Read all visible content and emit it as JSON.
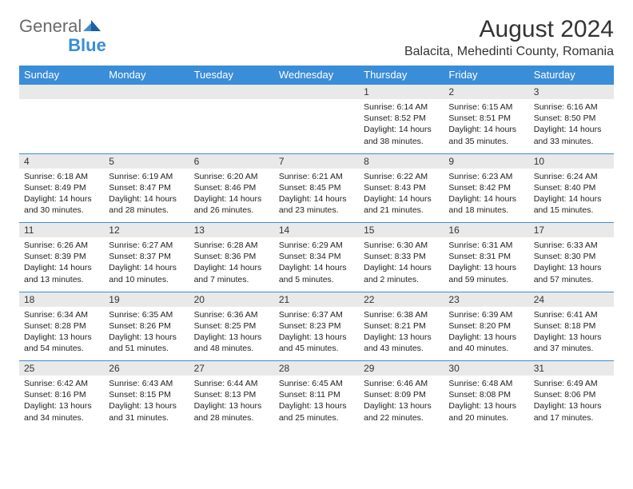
{
  "logo": {
    "general": "General",
    "blue": "Blue"
  },
  "title": "August 2024",
  "location": "Balacita, Mehedinti County, Romania",
  "colors": {
    "header_bg": "#3a8dd8",
    "header_text": "#ffffff",
    "daynum_bg": "#e9e9e9",
    "row_border": "#3a8dd8",
    "body_text": "#222222",
    "page_bg": "#ffffff"
  },
  "dayHeaders": [
    "Sunday",
    "Monday",
    "Tuesday",
    "Wednesday",
    "Thursday",
    "Friday",
    "Saturday"
  ],
  "weeks": [
    {
      "nums": [
        "",
        "",
        "",
        "",
        "1",
        "2",
        "3"
      ],
      "cells": [
        null,
        null,
        null,
        null,
        {
          "sunrise": "Sunrise: 6:14 AM",
          "sunset": "Sunset: 8:52 PM",
          "day1": "Daylight: 14 hours",
          "day2": "and 38 minutes."
        },
        {
          "sunrise": "Sunrise: 6:15 AM",
          "sunset": "Sunset: 8:51 PM",
          "day1": "Daylight: 14 hours",
          "day2": "and 35 minutes."
        },
        {
          "sunrise": "Sunrise: 6:16 AM",
          "sunset": "Sunset: 8:50 PM",
          "day1": "Daylight: 14 hours",
          "day2": "and 33 minutes."
        }
      ]
    },
    {
      "nums": [
        "4",
        "5",
        "6",
        "7",
        "8",
        "9",
        "10"
      ],
      "cells": [
        {
          "sunrise": "Sunrise: 6:18 AM",
          "sunset": "Sunset: 8:49 PM",
          "day1": "Daylight: 14 hours",
          "day2": "and 30 minutes."
        },
        {
          "sunrise": "Sunrise: 6:19 AM",
          "sunset": "Sunset: 8:47 PM",
          "day1": "Daylight: 14 hours",
          "day2": "and 28 minutes."
        },
        {
          "sunrise": "Sunrise: 6:20 AM",
          "sunset": "Sunset: 8:46 PM",
          "day1": "Daylight: 14 hours",
          "day2": "and 26 minutes."
        },
        {
          "sunrise": "Sunrise: 6:21 AM",
          "sunset": "Sunset: 8:45 PM",
          "day1": "Daylight: 14 hours",
          "day2": "and 23 minutes."
        },
        {
          "sunrise": "Sunrise: 6:22 AM",
          "sunset": "Sunset: 8:43 PM",
          "day1": "Daylight: 14 hours",
          "day2": "and 21 minutes."
        },
        {
          "sunrise": "Sunrise: 6:23 AM",
          "sunset": "Sunset: 8:42 PM",
          "day1": "Daylight: 14 hours",
          "day2": "and 18 minutes."
        },
        {
          "sunrise": "Sunrise: 6:24 AM",
          "sunset": "Sunset: 8:40 PM",
          "day1": "Daylight: 14 hours",
          "day2": "and 15 minutes."
        }
      ]
    },
    {
      "nums": [
        "11",
        "12",
        "13",
        "14",
        "15",
        "16",
        "17"
      ],
      "cells": [
        {
          "sunrise": "Sunrise: 6:26 AM",
          "sunset": "Sunset: 8:39 PM",
          "day1": "Daylight: 14 hours",
          "day2": "and 13 minutes."
        },
        {
          "sunrise": "Sunrise: 6:27 AM",
          "sunset": "Sunset: 8:37 PM",
          "day1": "Daylight: 14 hours",
          "day2": "and 10 minutes."
        },
        {
          "sunrise": "Sunrise: 6:28 AM",
          "sunset": "Sunset: 8:36 PM",
          "day1": "Daylight: 14 hours",
          "day2": "and 7 minutes."
        },
        {
          "sunrise": "Sunrise: 6:29 AM",
          "sunset": "Sunset: 8:34 PM",
          "day1": "Daylight: 14 hours",
          "day2": "and 5 minutes."
        },
        {
          "sunrise": "Sunrise: 6:30 AM",
          "sunset": "Sunset: 8:33 PM",
          "day1": "Daylight: 14 hours",
          "day2": "and 2 minutes."
        },
        {
          "sunrise": "Sunrise: 6:31 AM",
          "sunset": "Sunset: 8:31 PM",
          "day1": "Daylight: 13 hours",
          "day2": "and 59 minutes."
        },
        {
          "sunrise": "Sunrise: 6:33 AM",
          "sunset": "Sunset: 8:30 PM",
          "day1": "Daylight: 13 hours",
          "day2": "and 57 minutes."
        }
      ]
    },
    {
      "nums": [
        "18",
        "19",
        "20",
        "21",
        "22",
        "23",
        "24"
      ],
      "cells": [
        {
          "sunrise": "Sunrise: 6:34 AM",
          "sunset": "Sunset: 8:28 PM",
          "day1": "Daylight: 13 hours",
          "day2": "and 54 minutes."
        },
        {
          "sunrise": "Sunrise: 6:35 AM",
          "sunset": "Sunset: 8:26 PM",
          "day1": "Daylight: 13 hours",
          "day2": "and 51 minutes."
        },
        {
          "sunrise": "Sunrise: 6:36 AM",
          "sunset": "Sunset: 8:25 PM",
          "day1": "Daylight: 13 hours",
          "day2": "and 48 minutes."
        },
        {
          "sunrise": "Sunrise: 6:37 AM",
          "sunset": "Sunset: 8:23 PM",
          "day1": "Daylight: 13 hours",
          "day2": "and 45 minutes."
        },
        {
          "sunrise": "Sunrise: 6:38 AM",
          "sunset": "Sunset: 8:21 PM",
          "day1": "Daylight: 13 hours",
          "day2": "and 43 minutes."
        },
        {
          "sunrise": "Sunrise: 6:39 AM",
          "sunset": "Sunset: 8:20 PM",
          "day1": "Daylight: 13 hours",
          "day2": "and 40 minutes."
        },
        {
          "sunrise": "Sunrise: 6:41 AM",
          "sunset": "Sunset: 8:18 PM",
          "day1": "Daylight: 13 hours",
          "day2": "and 37 minutes."
        }
      ]
    },
    {
      "nums": [
        "25",
        "26",
        "27",
        "28",
        "29",
        "30",
        "31"
      ],
      "cells": [
        {
          "sunrise": "Sunrise: 6:42 AM",
          "sunset": "Sunset: 8:16 PM",
          "day1": "Daylight: 13 hours",
          "day2": "and 34 minutes."
        },
        {
          "sunrise": "Sunrise: 6:43 AM",
          "sunset": "Sunset: 8:15 PM",
          "day1": "Daylight: 13 hours",
          "day2": "and 31 minutes."
        },
        {
          "sunrise": "Sunrise: 6:44 AM",
          "sunset": "Sunset: 8:13 PM",
          "day1": "Daylight: 13 hours",
          "day2": "and 28 minutes."
        },
        {
          "sunrise": "Sunrise: 6:45 AM",
          "sunset": "Sunset: 8:11 PM",
          "day1": "Daylight: 13 hours",
          "day2": "and 25 minutes."
        },
        {
          "sunrise": "Sunrise: 6:46 AM",
          "sunset": "Sunset: 8:09 PM",
          "day1": "Daylight: 13 hours",
          "day2": "and 22 minutes."
        },
        {
          "sunrise": "Sunrise: 6:48 AM",
          "sunset": "Sunset: 8:08 PM",
          "day1": "Daylight: 13 hours",
          "day2": "and 20 minutes."
        },
        {
          "sunrise": "Sunrise: 6:49 AM",
          "sunset": "Sunset: 8:06 PM",
          "day1": "Daylight: 13 hours",
          "day2": "and 17 minutes."
        }
      ]
    }
  ]
}
